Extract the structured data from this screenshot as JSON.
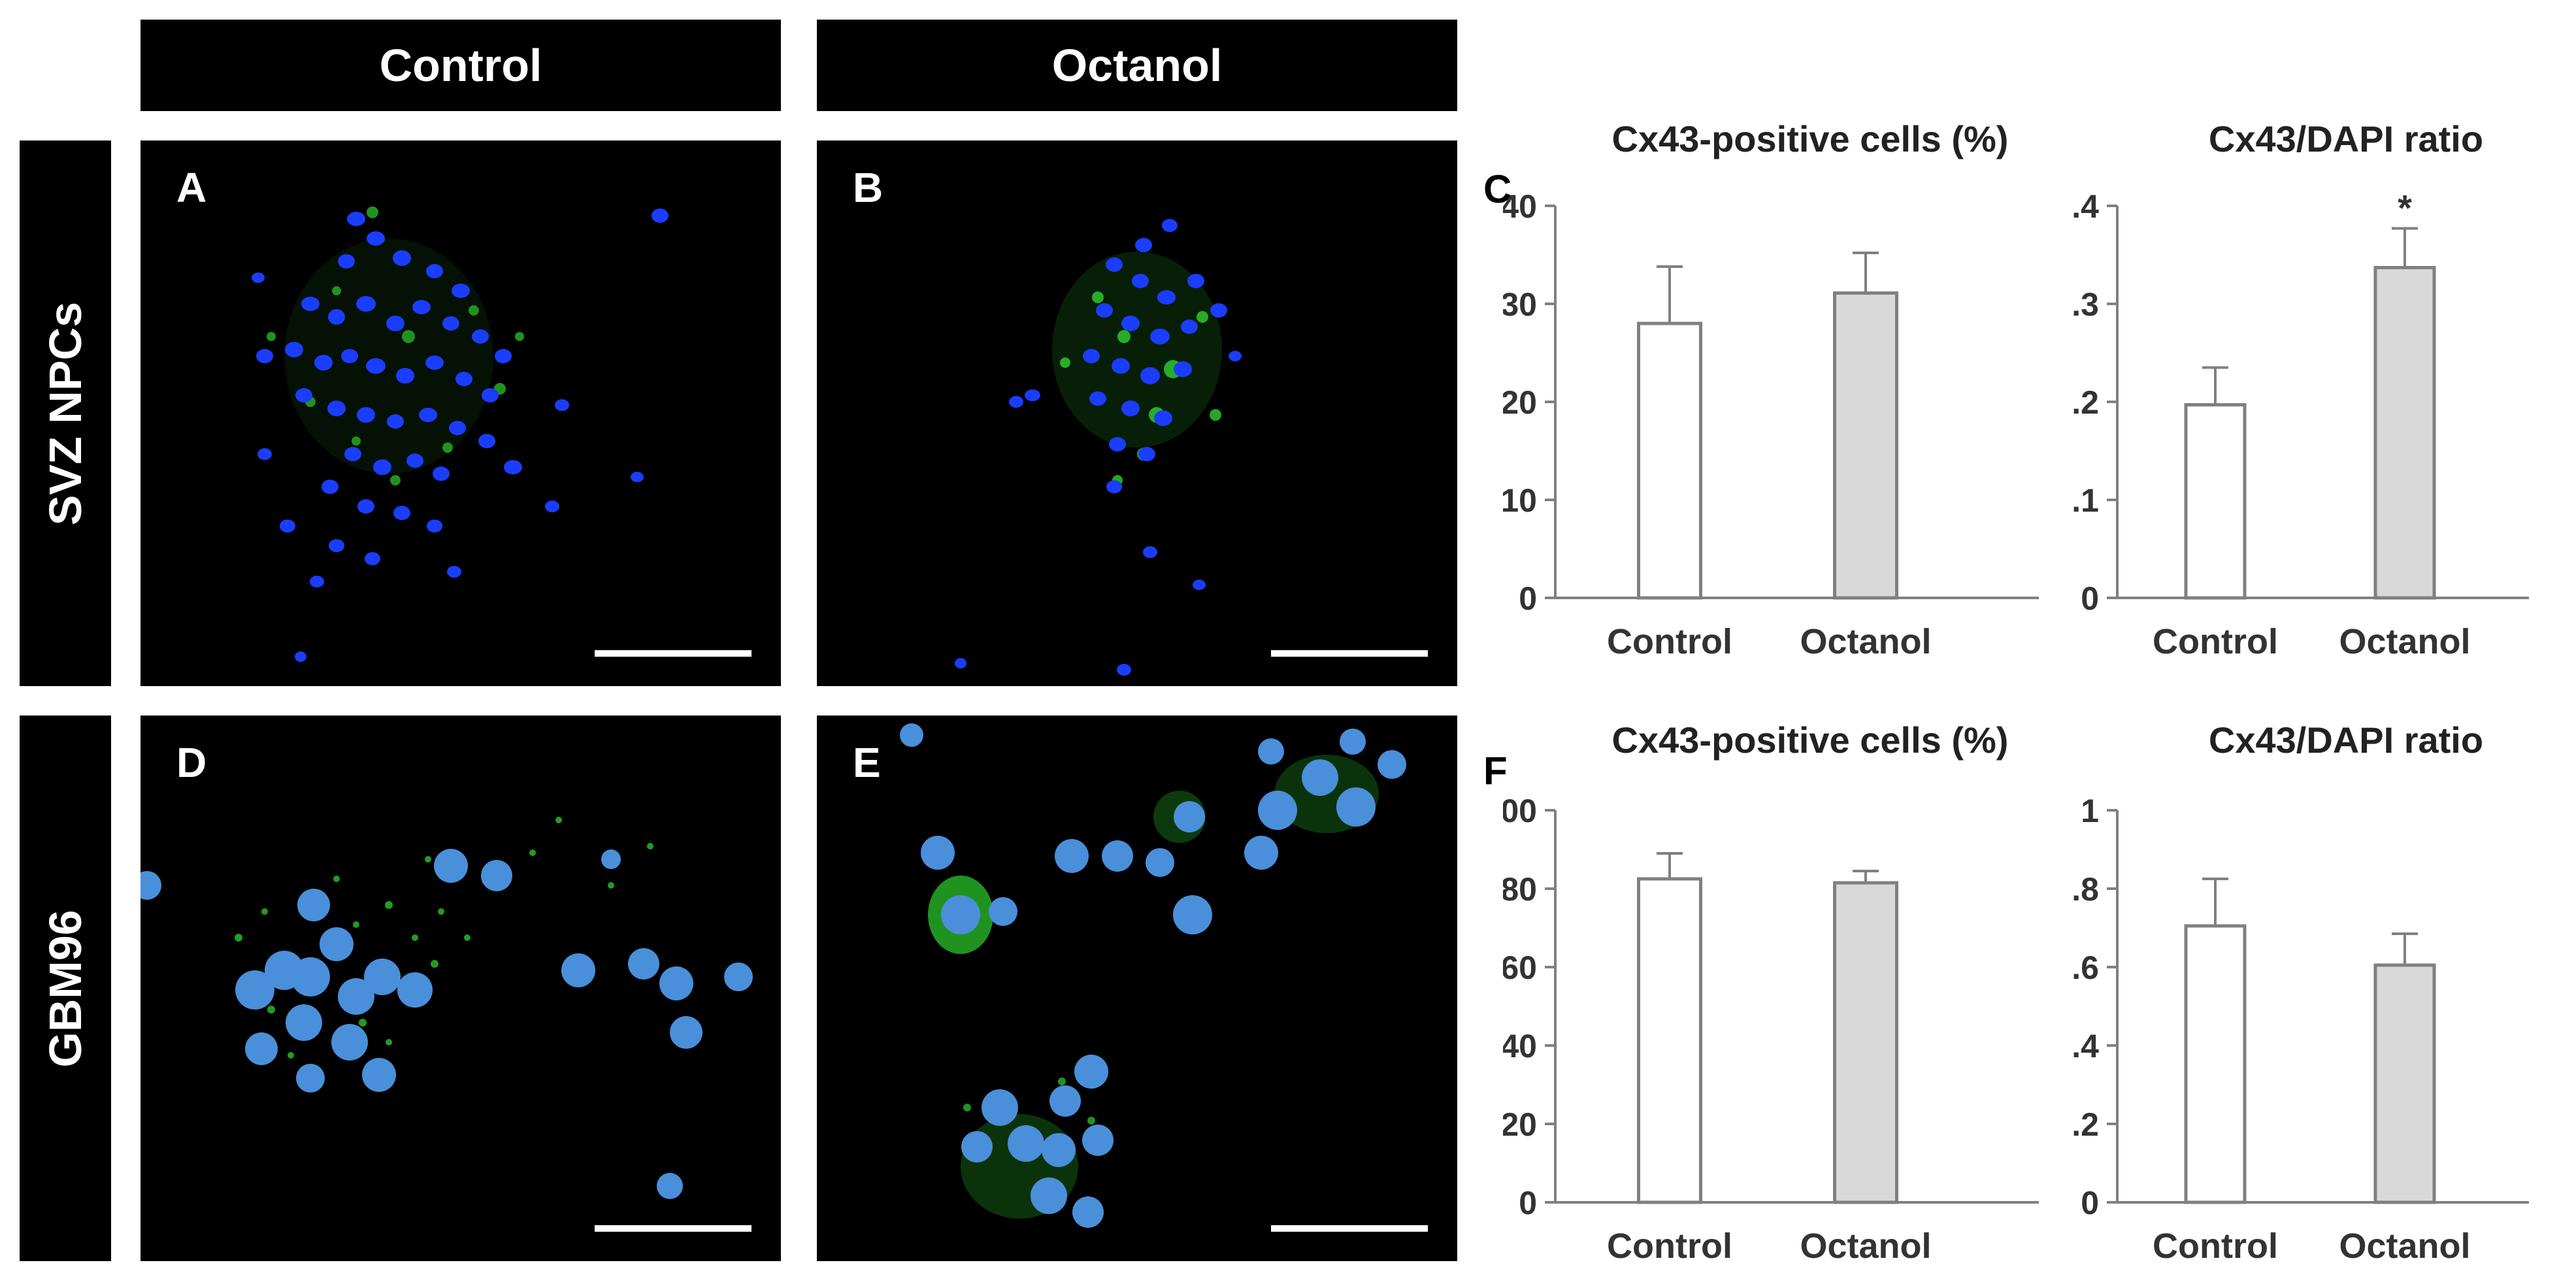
{
  "columns": [
    "Control",
    "Octanol"
  ],
  "rows": [
    "SVZ NPCs",
    "GBM96"
  ],
  "panel_labels": {
    "A": "A",
    "B": "B",
    "C": "C",
    "D": "D",
    "E": "E",
    "F": "F"
  },
  "colors": {
    "nucleus": "#1a3dff",
    "cx43": "#2fd12f",
    "bar_control": "#ffffff",
    "bar_octanol": "#d9d9d9",
    "axis": "#808080"
  },
  "chart_data": [
    {
      "type": "bar",
      "panel": "C",
      "title": "Cx43-positive cells (%)",
      "categories": [
        "Control",
        "Octanol"
      ],
      "values": [
        28,
        31.1
      ],
      "errors": [
        5.8,
        4.1
      ],
      "ylim": [
        0,
        40
      ],
      "yticks": [
        "0",
        "10",
        "20",
        "30",
        "40"
      ],
      "annotations": [
        "",
        ""
      ]
    },
    {
      "type": "bar",
      "panel": "C",
      "title": "Cx43/DAPI ratio",
      "categories": [
        "Control",
        "Octanol"
      ],
      "values": [
        0.197,
        0.337
      ],
      "errors": [
        0.038,
        0.04
      ],
      "ylim": [
        0,
        0.4
      ],
      "yticks": [
        "0",
        "0.1",
        "0.2",
        "0.3",
        "0.4"
      ],
      "annotations": [
        "",
        "*"
      ]
    },
    {
      "type": "bar",
      "panel": "F",
      "title": "Cx43-positive cells (%)",
      "categories": [
        "Control",
        "Octanol"
      ],
      "values": [
        82.5,
        81.5
      ],
      "errors": [
        6.5,
        3
      ],
      "ylim": [
        0,
        100
      ],
      "yticks": [
        "0",
        "20",
        "40",
        "60",
        "80",
        "100"
      ],
      "annotations": [
        "",
        ""
      ]
    },
    {
      "type": "bar",
      "panel": "F",
      "title": "Cx43/DAPI ratio",
      "categories": [
        "Control",
        "Octanol"
      ],
      "values": [
        0.705,
        0.605
      ],
      "errors": [
        0.12,
        0.08
      ],
      "ylim": [
        0,
        1
      ],
      "yticks": [
        "0",
        "0.2",
        "0.4",
        "0.6",
        "0.8",
        "1"
      ],
      "annotations": [
        "",
        ""
      ]
    }
  ]
}
